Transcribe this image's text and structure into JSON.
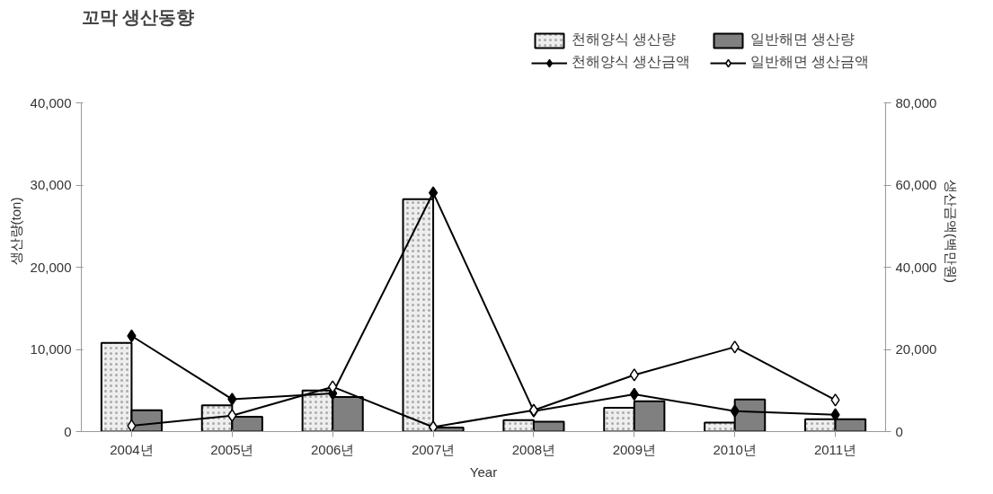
{
  "chart_data": {
    "type": "bar",
    "title": "꼬막 생산동향",
    "xlabel": "Year",
    "ylabel": "생산량(ton)",
    "y2label": "생산금액(백만원)",
    "categories": [
      "2004년",
      "2005년",
      "2006년",
      "2007년",
      "2008년",
      "2009년",
      "2010년",
      "2011년"
    ],
    "series": [
      {
        "name": "천해양식 생산량",
        "color": "#eeeeee",
        "values": [
          10800,
          3200,
          5000,
          28300,
          1400,
          2900,
          1100,
          1500
        ]
      },
      {
        "name": "일반해면 생산량",
        "color": "#808080",
        "values": [
          2600,
          1800,
          4200,
          500,
          1200,
          3700,
          3900,
          1500
        ]
      },
      {
        "name": "천해양식 생산금액",
        "type": "line",
        "axis": "y2",
        "color": "#000000",
        "values": [
          23300,
          7900,
          9300,
          58200,
          5000,
          9100,
          5000,
          4100
        ]
      },
      {
        "name": "일반해면 생산금액",
        "type": "line",
        "axis": "y2",
        "color": "#ffffff",
        "values": [
          1400,
          3900,
          10900,
          1100,
          5200,
          13800,
          20600,
          7700
        ]
      }
    ],
    "ylim": [
      0,
      40000
    ],
    "yticks": [
      {
        "value": 0,
        "label": "0"
      },
      {
        "value": 10000,
        "label": "10,000"
      },
      {
        "value": 20000,
        "label": "20,000"
      },
      {
        "value": 30000,
        "label": "30,000"
      },
      {
        "value": 40000,
        "label": "40,000"
      }
    ],
    "y2lim": [
      0,
      80000
    ],
    "y2ticks": [
      {
        "value": 0,
        "label": "0"
      },
      {
        "value": 20000,
        "label": "20,000"
      },
      {
        "value": 40000,
        "label": "40,000"
      },
      {
        "value": 60000,
        "label": "60,000"
      },
      {
        "value": 80000,
        "label": "80,000"
      }
    ],
    "marker": "diamond",
    "line_style": "solid",
    "grid": false,
    "legend": "top right"
  }
}
